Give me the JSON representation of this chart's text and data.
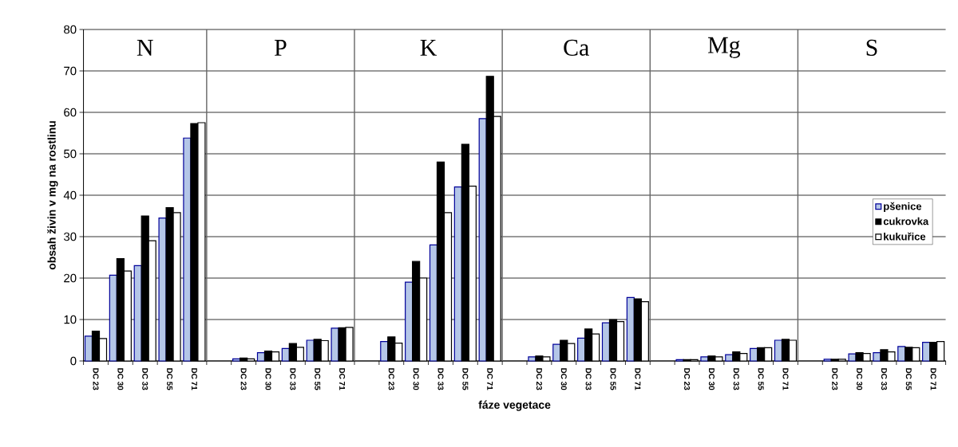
{
  "chart_data": {
    "type": "bar",
    "xlabel": "fáze vegetace",
    "ylabel": "obsah živin v mg na rostlinu",
    "categories": [
      "DC 23",
      "DC 30",
      "DC 33",
      "DC 55",
      "DC 71",
      null,
      "DC 23",
      "DC 30",
      "DC 33",
      "DC 55",
      "DC 71",
      null,
      "DC 23",
      "DC 30",
      "DC 33",
      "DC 55",
      "DC 71",
      null,
      "DC 23",
      "DC 30",
      "DC 33",
      "DC 55",
      "DC 71",
      null,
      "DC 23",
      "DC 30",
      "DC 33",
      "DC 55",
      "DC 71",
      null,
      "DC 23",
      "DC 30",
      "DC 33",
      "DC 55",
      "DC 71"
    ],
    "series": [
      {
        "name": "pšenice",
        "color": "#b4c6e7",
        "values": [
          6,
          20.7,
          23,
          34.5,
          53.8,
          null,
          0.5,
          2,
          3,
          5,
          7.9,
          null,
          4.7,
          19,
          28,
          42,
          58.5,
          null,
          1,
          4,
          5.5,
          9.2,
          15.3,
          null,
          0.3,
          1,
          1.5,
          3,
          5,
          null,
          0.4,
          1.7,
          2,
          3.5,
          4.5
        ]
      },
      {
        "name": "cukrovka",
        "color": "#000000",
        "values": [
          7.2,
          24.7,
          35,
          37,
          57.3,
          null,
          0.7,
          2.4,
          4.2,
          5.2,
          8,
          null,
          5.8,
          24,
          48,
          52.3,
          68.7,
          null,
          1.2,
          5,
          7.7,
          10,
          15,
          null,
          0.3,
          1.2,
          2.2,
          3.2,
          5.2,
          null,
          0.4,
          2,
          2.7,
          3.3,
          4.5
        ]
      },
      {
        "name": "kukuřice",
        "color": "#ffffff",
        "values": [
          5.4,
          21.7,
          29,
          35.8,
          57.5,
          null,
          0.5,
          2.2,
          3.3,
          4.9,
          8.1,
          null,
          4.3,
          20,
          35.8,
          42.2,
          59,
          null,
          1,
          4.2,
          6.5,
          9.5,
          14.3,
          null,
          0.3,
          1,
          1.8,
          3.2,
          5,
          null,
          0.4,
          1.8,
          2.2,
          3.2,
          4.7
        ]
      }
    ],
    "annotations": [
      "N",
      "P",
      "K",
      "Ca",
      "Mg",
      "S"
    ],
    "ylim": [
      0,
      80
    ],
    "yticks": [
      0,
      10,
      20,
      30,
      40,
      50,
      60,
      70,
      80
    ],
    "grid": "y",
    "legend": "right"
  }
}
